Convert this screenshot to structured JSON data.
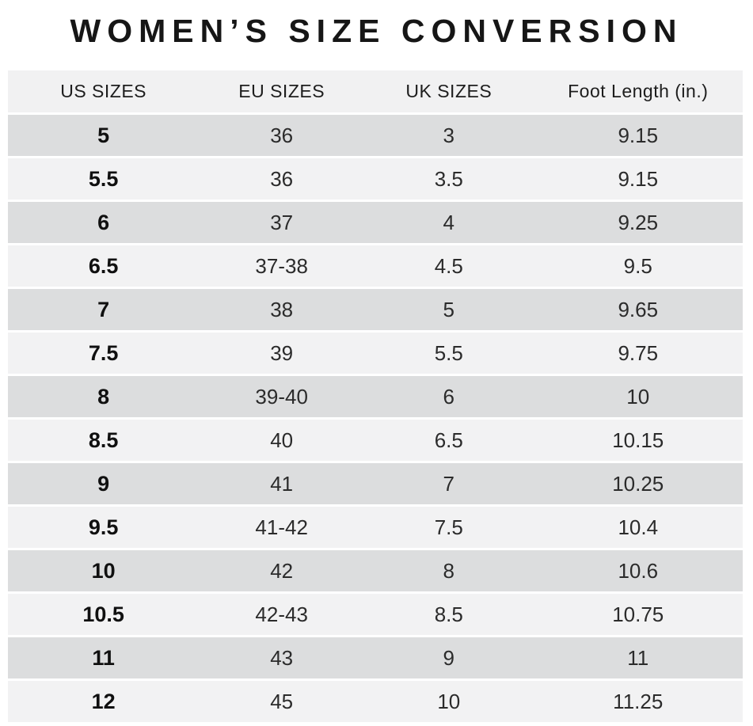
{
  "chart_data": {
    "type": "table",
    "title": "WOMEN’S SIZE CONVERSION",
    "columns": [
      "US SIZES",
      "EU SIZES",
      "UK SIZES",
      "Foot Length (in.)"
    ],
    "rows": [
      [
        "5",
        "36",
        "3",
        "9.15"
      ],
      [
        "5.5",
        "36",
        "3.5",
        "9.15"
      ],
      [
        "6",
        "37",
        "4",
        "9.25"
      ],
      [
        "6.5",
        "37-38",
        "4.5",
        "9.5"
      ],
      [
        "7",
        "38",
        "5",
        "9.65"
      ],
      [
        "7.5",
        "39",
        "5.5",
        "9.75"
      ],
      [
        "8",
        "39-40",
        "6",
        "10"
      ],
      [
        "8.5",
        "40",
        "6.5",
        "10.15"
      ],
      [
        "9",
        "41",
        "7",
        "10.25"
      ],
      [
        "9.5",
        "41-42",
        "7.5",
        "10.4"
      ],
      [
        "10",
        "42",
        "8",
        "10.6"
      ],
      [
        "10.5",
        "42-43",
        "8.5",
        "10.75"
      ],
      [
        "11",
        "43",
        "9",
        "11"
      ],
      [
        "12",
        "45",
        "10",
        "11.25"
      ]
    ],
    "layout": {
      "row_striping": "odd-rows-dark",
      "first_column_bold": true,
      "grid": "horizontal-white-separators"
    }
  },
  "colors": {
    "title_text": "#161616",
    "header_bg": "#f1f1f2",
    "row_dark": "#dcddde",
    "row_light": "#f2f2f3",
    "text": "#2b2b2b",
    "background": "#ffffff"
  }
}
